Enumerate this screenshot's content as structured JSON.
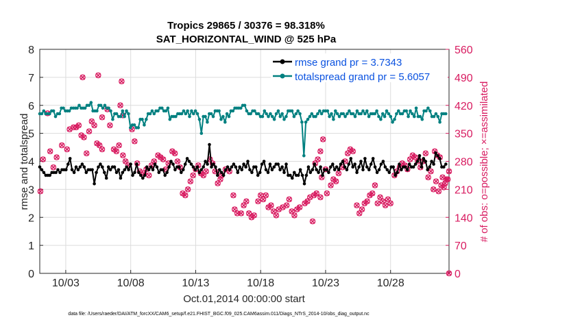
{
  "chart_data": {
    "type": "line",
    "title": "Tropics 29865 / 30376 = 98.318%",
    "subtitle": "SAT_HORIZONTAL_WIND @ 525 hPa",
    "xlabel": "Oct.01,2014 00:00:00 start",
    "ylabel": "rmse and totalspread",
    "ylabel_right": "# of obs: o=possible; ×=assimilated",
    "ylim": [
      0,
      8
    ],
    "ylim_right": [
      0,
      560
    ],
    "xlim": [
      1.0,
      32.5
    ],
    "yticks": [
      "0",
      "1",
      "2",
      "3",
      "4",
      "5",
      "6",
      "7",
      "8"
    ],
    "yticks_right": [
      "0",
      "70",
      "140",
      "210",
      "280",
      "350",
      "420",
      "490",
      "560"
    ],
    "xticks": [
      {
        "value": 3,
        "label": "10/03"
      },
      {
        "value": 8,
        "label": "10/08"
      },
      {
        "value": 13,
        "label": "10/13"
      },
      {
        "value": 18,
        "label": "10/18"
      },
      {
        "value": 23,
        "label": "10/23"
      },
      {
        "value": 28,
        "label": "10/28"
      }
    ],
    "grid": true,
    "legend_position": "top-right",
    "series": [
      {
        "name": "rmse grand pr = 3.7343",
        "color": "#000000",
        "axis": "left",
        "values": [
          3.8,
          3.7,
          3.6,
          3.5,
          3.5,
          3.5,
          3.6,
          3.6,
          3.6,
          3.7,
          3.6,
          3.7,
          3.7,
          3.7,
          3.9,
          4.1,
          3.7,
          3.6,
          3.8,
          3.7,
          3.8,
          3.9,
          3.8,
          3.6,
          3.7,
          3.7,
          3.7,
          3.2,
          3.6,
          3.8,
          3.9,
          3.8,
          3.6,
          3.4,
          3.8,
          3.7,
          3.8,
          3.8,
          3.6,
          3.7,
          3.4,
          3.6,
          3.7,
          3.8,
          3.7,
          3.9,
          3.5,
          3.6,
          3.9,
          3.6,
          3.5,
          3.4,
          3.5,
          3.8,
          3.7,
          3.8,
          3.7,
          3.9,
          3.8,
          3.6,
          3.7,
          3.7,
          3.5,
          3.6,
          3.8,
          4.0,
          3.9,
          3.7,
          3.8,
          3.8,
          3.6,
          3.7,
          3.9,
          4.1,
          4.0,
          3.9,
          3.8,
          3.7,
          3.8,
          3.6,
          3.7,
          3.8,
          4.0,
          3.9,
          4.6,
          3.8,
          3.9,
          3.8,
          3.5,
          3.7,
          3.6,
          3.5,
          3.7,
          3.8,
          3.7,
          3.8,
          3.9,
          3.8,
          3.6,
          3.8,
          3.7,
          3.9,
          3.8,
          4.0,
          3.7,
          3.6,
          3.8,
          3.8,
          3.5,
          3.6,
          3.9,
          4.0,
          3.7,
          3.6,
          3.9,
          3.7,
          3.8,
          3.9,
          3.9,
          3.7,
          3.8,
          3.6,
          3.9,
          3.5,
          3.5,
          3.4,
          3.6,
          3.5,
          3.5,
          3.7,
          3.5,
          3.2,
          3.5,
          3.8,
          3.6,
          3.7,
          3.9,
          3.7,
          3.6,
          3.8,
          3.5,
          3.7,
          3.7,
          3.6,
          3.8,
          3.9,
          3.7,
          3.8,
          3.7,
          3.9,
          4.0,
          3.8,
          3.7,
          3.9,
          4.1,
          3.8,
          3.9,
          3.6,
          3.8,
          4.0,
          3.7,
          4.1,
          3.8,
          3.7,
          3.9,
          4.1,
          3.8,
          3.6,
          3.7,
          3.9,
          4.0,
          3.8,
          3.7,
          3.6,
          3.8,
          3.8,
          3.5,
          3.6,
          3.9,
          3.7,
          3.8,
          3.8,
          3.7,
          3.9,
          3.8,
          3.8,
          3.9,
          4.0,
          4.2,
          3.8,
          4.1,
          4.0,
          3.7,
          3.8,
          4.0,
          3.9,
          4.3,
          4.2,
          4.1,
          3.8,
          3.8,
          3.9
        ]
      },
      {
        "name": "totalspread grand pr = 5.6057",
        "color": "#008080",
        "axis": "left",
        "values": [
          5.7,
          5.7,
          5.8,
          5.7,
          5.7,
          5.7,
          5.8,
          5.8,
          5.6,
          5.7,
          5.7,
          5.9,
          5.9,
          5.8,
          5.8,
          5.8,
          5.9,
          5.9,
          5.9,
          5.9,
          6.0,
          5.9,
          5.9,
          5.9,
          6.0,
          6.0,
          6.1,
          5.8,
          5.8,
          5.8,
          6.0,
          6.0,
          5.9,
          6.0,
          5.9,
          5.9,
          5.8,
          5.5,
          5.7,
          5.7,
          5.6,
          5.6,
          5.8,
          5.6,
          5.8,
          5.7,
          5.2,
          5.3,
          5.3,
          5.2,
          5.2,
          5.5,
          5.5,
          5.3,
          5.5,
          5.7,
          5.7,
          5.8,
          5.7,
          5.8,
          5.8,
          5.9,
          5.9,
          5.8,
          5.8,
          5.9,
          5.5,
          5.6,
          5.6,
          5.6,
          5.7,
          5.7,
          5.7,
          5.8,
          5.7,
          5.8,
          5.6,
          5.8,
          5.7,
          5.8,
          5.7,
          5.5,
          5.0,
          5.6,
          5.6,
          5.4,
          5.7,
          5.7,
          5.6,
          5.8,
          5.8,
          5.8,
          5.5,
          5.6,
          5.4,
          5.7,
          5.6,
          5.8,
          5.8,
          5.9,
          5.9,
          5.9,
          5.9,
          6.0,
          6.0,
          5.8,
          5.7,
          5.7,
          5.8,
          5.8,
          5.7,
          5.7,
          5.6,
          5.6,
          5.8,
          5.7,
          5.6,
          5.7,
          5.6,
          5.5,
          5.7,
          5.8,
          5.6,
          5.7,
          5.5,
          5.6,
          5.8,
          5.8,
          5.8,
          5.6,
          5.7,
          5.8,
          5.7,
          5.4,
          4.2,
          5.4,
          5.5,
          5.6,
          5.7,
          5.6,
          5.6,
          5.7,
          5.8,
          5.7,
          5.8,
          5.8,
          5.8,
          5.6,
          5.7,
          5.5,
          5.8,
          5.7,
          5.6,
          5.7,
          5.7,
          5.6,
          5.7,
          5.8,
          5.7,
          5.7,
          5.6,
          5.8,
          5.7,
          5.7,
          5.8,
          5.7,
          5.8,
          5.6,
          5.7,
          5.7,
          5.7,
          5.8,
          5.6,
          5.5,
          5.7,
          5.6,
          5.8,
          5.7,
          5.6,
          5.4,
          5.5,
          5.7,
          5.8,
          5.7,
          5.7,
          5.8,
          5.8,
          5.6,
          5.8,
          5.7,
          5.6,
          5.9,
          5.6,
          5.6,
          5.5,
          5.8,
          5.8,
          5.9,
          5.8,
          5.6,
          5.6,
          5.7,
          5.6,
          5.4,
          5.7,
          5.7,
          5.7
        ]
      },
      {
        "name": "# of obs possible/assimilated",
        "color": "#d81b60",
        "axis": "right",
        "points": [
          [
            1.05,
            205
          ],
          [
            1.25,
            285
          ],
          [
            1.6,
            400
          ],
          [
            1.8,
            305
          ],
          [
            2.05,
            265
          ],
          [
            2.3,
            290
          ],
          [
            2.7,
            320
          ],
          [
            3.1,
            310
          ],
          [
            3.3,
            360
          ],
          [
            3.6,
            365
          ],
          [
            3.8,
            365
          ],
          [
            4.0,
            370
          ],
          [
            4.2,
            345
          ],
          [
            4.4,
            340
          ],
          [
            4.6,
            300
          ],
          [
            4.8,
            355
          ],
          [
            5.0,
            380
          ],
          [
            5.2,
            370
          ],
          [
            5.4,
            325
          ],
          [
            5.6,
            320
          ],
          [
            5.8,
            310
          ],
          [
            4.3,
            490
          ],
          [
            5.5,
            495
          ],
          [
            5.8,
            390
          ],
          [
            6.2,
            410
          ],
          [
            6.4,
            370
          ],
          [
            7.3,
            480
          ],
          [
            6.7,
            310
          ],
          [
            6.9,
            305
          ],
          [
            7.1,
            320
          ],
          [
            7.4,
            295
          ],
          [
            7.6,
            280
          ],
          [
            7.8,
            270
          ],
          [
            7.2,
            420
          ],
          [
            7.4,
            395
          ],
          [
            8.1,
            360
          ],
          [
            8.3,
            330
          ],
          [
            8.5,
            275
          ],
          [
            8.7,
            255
          ],
          [
            9.0,
            250
          ],
          [
            9.2,
            260
          ],
          [
            9.4,
            245
          ],
          [
            9.6,
            270
          ],
          [
            9.8,
            280
          ],
          [
            10.1,
            295
          ],
          [
            10.3,
            290
          ],
          [
            10.5,
            285
          ],
          [
            10.7,
            260
          ],
          [
            10.9,
            275
          ],
          [
            11.2,
            305
          ],
          [
            11.4,
            300
          ],
          [
            11.6,
            280
          ],
          [
            11.8,
            265
          ],
          [
            12.0,
            200
          ],
          [
            12.2,
            195
          ],
          [
            12.4,
            210
          ],
          [
            12.6,
            230
          ],
          [
            12.8,
            245
          ],
          [
            13.0,
            260
          ],
          [
            13.2,
            270
          ],
          [
            13.4,
            250
          ],
          [
            13.6,
            245
          ],
          [
            13.8,
            255
          ],
          [
            14.1,
            285
          ],
          [
            14.3,
            275
          ],
          [
            14.5,
            255
          ],
          [
            14.7,
            225
          ],
          [
            14.9,
            235
          ],
          [
            15.0,
            245
          ],
          [
            15.3,
            260
          ],
          [
            15.6,
            255
          ],
          [
            15.9,
            195
          ],
          [
            16.0,
            160
          ],
          [
            16.2,
            150
          ],
          [
            16.5,
            150
          ],
          [
            16.7,
            170
          ],
          [
            16.9,
            180
          ],
          [
            17.1,
            150
          ],
          [
            17.3,
            140
          ],
          [
            17.5,
            145
          ],
          [
            17.8,
            180
          ],
          [
            18.0,
            195
          ],
          [
            18.2,
            185
          ],
          [
            18.4,
            195
          ],
          [
            18.6,
            165
          ],
          [
            18.8,
            170
          ],
          [
            19.0,
            155
          ],
          [
            19.2,
            145
          ],
          [
            19.4,
            160
          ],
          [
            19.7,
            165
          ],
          [
            20.0,
            170
          ],
          [
            20.2,
            185
          ],
          [
            20.4,
            155
          ],
          [
            20.6,
            145
          ],
          [
            20.8,
            160
          ],
          [
            21.0,
            165
          ],
          [
            21.4,
            175
          ],
          [
            21.6,
            180
          ],
          [
            21.8,
            190
          ],
          [
            22.1,
            195
          ],
          [
            22.3,
            200
          ],
          [
            22.6,
            190
          ],
          [
            22.0,
            130
          ],
          [
            22.2,
            275
          ],
          [
            22.4,
            285
          ],
          [
            22.6,
            305
          ],
          [
            22.8,
            335
          ],
          [
            22.7,
            240
          ],
          [
            23.0,
            260
          ],
          [
            23.1,
            200
          ],
          [
            23.4,
            220
          ],
          [
            23.6,
            235
          ],
          [
            23.8,
            230
          ],
          [
            24.0,
            250
          ],
          [
            24.3,
            265
          ],
          [
            24.5,
            280
          ],
          [
            24.7,
            300
          ],
          [
            24.9,
            310
          ],
          [
            25.1,
            305
          ],
          [
            25.4,
            170
          ],
          [
            25.6,
            150
          ],
          [
            25.8,
            160
          ],
          [
            26.0,
            175
          ],
          [
            26.2,
            180
          ],
          [
            26.4,
            195
          ],
          [
            26.6,
            200
          ],
          [
            26.8,
            220
          ],
          [
            27.0,
            175
          ],
          [
            27.2,
            190
          ],
          [
            27.4,
            180
          ],
          [
            27.6,
            170
          ],
          [
            27.8,
            185
          ],
          [
            28.0,
            175
          ],
          [
            28.3,
            245
          ],
          [
            28.5,
            255
          ],
          [
            28.7,
            265
          ],
          [
            28.9,
            275
          ],
          [
            29.1,
            270
          ],
          [
            29.3,
            260
          ],
          [
            29.5,
            285
          ],
          [
            29.7,
            295
          ],
          [
            29.9,
            290
          ],
          [
            30.1,
            280
          ],
          [
            30.3,
            265
          ],
          [
            30.5,
            280
          ],
          [
            30.7,
            300
          ],
          [
            30.9,
            240
          ],
          [
            31.1,
            255
          ],
          [
            31.3,
            210
          ],
          [
            31.5,
            230
          ],
          [
            31.7,
            205
          ],
          [
            31.9,
            220
          ],
          [
            32.1,
            215
          ],
          [
            32.3,
            235
          ],
          [
            32.5,
            255
          ],
          [
            31.4,
            305
          ],
          [
            31.6,
            295
          ],
          [
            31.8,
            290
          ],
          [
            32.0,
            240
          ],
          [
            32.2,
            225
          ],
          [
            32.4,
            235
          ],
          [
            32.5,
            0
          ]
        ]
      }
    ],
    "footnote": "data file: /Users/raeder/DAI/ATM_forcXX/CAM6_setup/f.e21.FHIST_BGC.f09_025.CAM6assim.011/Diags_NTrS_2014-10/obs_diag_output.nc"
  }
}
